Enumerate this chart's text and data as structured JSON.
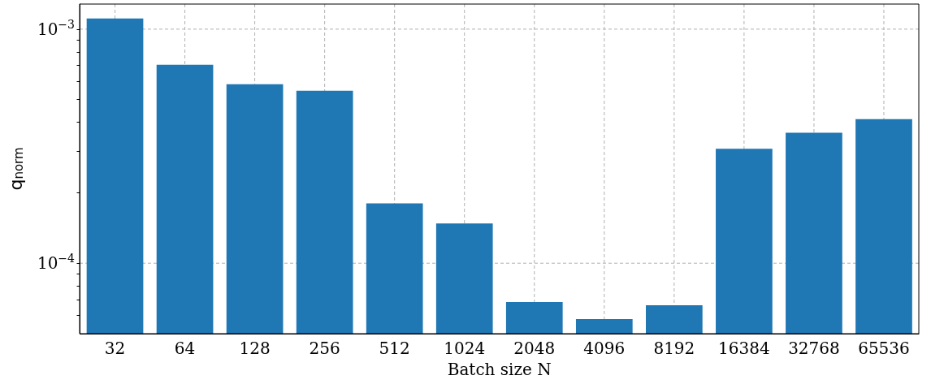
{
  "chart_data": {
    "type": "bar",
    "xlabel": "Batch size N",
    "ylabel": "q$_{norm}$",
    "categories": [
      "32",
      "64",
      "128",
      "256",
      "512",
      "1024",
      "2048",
      "4096",
      "8192",
      "16384",
      "32768",
      "65536"
    ],
    "values": [
      0.00111,
      0.000705,
      0.000582,
      0.000546,
      0.00018,
      0.000148,
      6.83e-05,
      5.77e-05,
      6.61e-05,
      0.000308,
      0.000361,
      0.000413
    ],
    "color": "#1f77b4",
    "log": "y",
    "ylim": [
      5e-05,
      0.00128
    ],
    "yticks": [
      {
        "value": 6e-05,
        "label": null
      },
      {
        "value": 7e-05,
        "label": null
      },
      {
        "value": 8e-05,
        "label": null
      },
      {
        "value": 9e-05,
        "label": null
      },
      {
        "value": 0.0001,
        "label": "10$^{−4}$"
      },
      {
        "value": 0.0002,
        "label": null
      },
      {
        "value": 0.0003,
        "label": null
      },
      {
        "value": 0.0004,
        "label": null
      },
      {
        "value": 0.0005,
        "label": null
      },
      {
        "value": 0.0006,
        "label": null
      },
      {
        "value": 0.0007,
        "label": null
      },
      {
        "value": 0.0008,
        "label": null
      },
      {
        "value": 0.0009,
        "label": null
      },
      {
        "value": 0.001,
        "label": "10$^{−3}$"
      }
    ],
    "grid": true
  }
}
